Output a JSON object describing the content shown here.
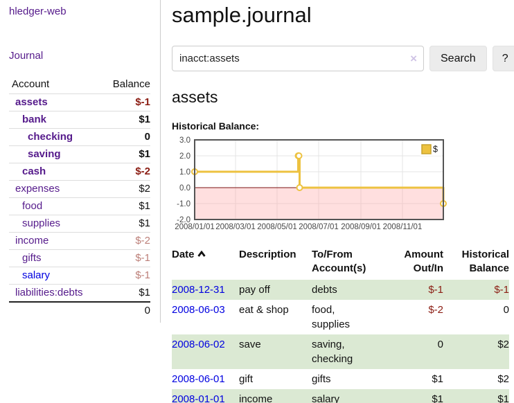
{
  "sidebar": {
    "app_title": "hledger-web",
    "nav": {
      "journal_label": "Journal"
    },
    "accounts_table": {
      "headers": {
        "account": "Account",
        "balance": "Balance"
      },
      "rows": [
        {
          "name": "assets",
          "balance": "$-1",
          "indent": 1,
          "bold": true,
          "balance_style": "neg-strong"
        },
        {
          "name": "bank",
          "balance": "$1",
          "indent": 2,
          "bold": true,
          "balance_style": "pos"
        },
        {
          "name": "checking",
          "balance": "0",
          "indent": 3,
          "bold": true,
          "balance_style": "pos"
        },
        {
          "name": "saving",
          "balance": "$1",
          "indent": 3,
          "bold": true,
          "balance_style": "pos"
        },
        {
          "name": "cash",
          "balance": "$-2",
          "indent": 2,
          "bold": true,
          "balance_style": "neg-strong"
        },
        {
          "name": "expenses",
          "balance": "$2",
          "indent": 1,
          "bold": false,
          "balance_style": "pos"
        },
        {
          "name": "food",
          "balance": "$1",
          "indent": 2,
          "bold": false,
          "balance_style": "pos"
        },
        {
          "name": "supplies",
          "balance": "$1",
          "indent": 2,
          "bold": false,
          "balance_style": "pos"
        },
        {
          "name": "income",
          "balance": "$-2",
          "indent": 1,
          "bold": false,
          "balance_style": "neg-soft"
        },
        {
          "name": "gifts",
          "balance": "$-1",
          "indent": 2,
          "bold": false,
          "balance_style": "neg-soft"
        },
        {
          "name": "salary",
          "balance": "$-1",
          "indent": 2,
          "bold": false,
          "balance_style": "neg-soft",
          "link_color": "blue"
        },
        {
          "name": "liabilities:debts",
          "balance": "$1",
          "indent": 1,
          "bold": false,
          "balance_style": "pos"
        }
      ],
      "total": "0"
    }
  },
  "header": {
    "title": "sample.journal"
  },
  "search": {
    "value": "inacct:assets",
    "clear_icon": "×",
    "button_label": "Search",
    "help_label": "?"
  },
  "account_page": {
    "title": "assets"
  },
  "chart_data": {
    "type": "line",
    "title": "Historical Balance:",
    "step": true,
    "series": [
      {
        "name": "$",
        "color": "#edc240",
        "points": [
          {
            "date": "2008-01-01",
            "value": 1
          },
          {
            "date": "2008-06-01",
            "value": 2
          },
          {
            "date": "2008-06-02",
            "value": 2
          },
          {
            "date": "2008-06-03",
            "value": 0
          },
          {
            "date": "2008-12-31",
            "value": -1
          }
        ]
      }
    ],
    "x_ticks": [
      "2008/01/01",
      "2008/03/01",
      "2008/05/01",
      "2008/07/01",
      "2008/09/01",
      "2008/11/01"
    ],
    "y_ticks": [
      3.0,
      2.0,
      1.0,
      0.0,
      -1.0,
      -2.0
    ],
    "xlim": [
      "2008-01-01",
      "2008-12-31"
    ],
    "ylim": [
      -2,
      3
    ],
    "grid": true,
    "colors": {
      "gridline": "#e4e4e4",
      "border": "#545454",
      "zero_line": "#7a1010",
      "negative_region_fill": "rgba(255,170,170,0.38)",
      "marker_fill": "#ffffff"
    },
    "legend": {
      "label": "$",
      "position": "top-right"
    }
  },
  "register_table": {
    "headers": {
      "date": "Date",
      "description": "Description",
      "accounts": "To/From Account(s)",
      "amount": "Amount Out/In",
      "balance": "Historical Balance"
    },
    "rows": [
      {
        "date": "2008-12-31",
        "description": "pay off",
        "accounts": "debts",
        "amount": "$-1",
        "amount_neg": true,
        "balance": "$-1",
        "balance_neg": true
      },
      {
        "date": "2008-06-03",
        "description": "eat & shop",
        "accounts": "food, supplies",
        "amount": "$-2",
        "amount_neg": true,
        "balance": "0",
        "balance_neg": false
      },
      {
        "date": "2008-06-02",
        "description": "save",
        "accounts": "saving, checking",
        "amount": "0",
        "amount_neg": false,
        "balance": "$2",
        "balance_neg": false
      },
      {
        "date": "2008-06-01",
        "description": "gift",
        "accounts": "gifts",
        "amount": "$1",
        "amount_neg": false,
        "balance": "$2",
        "balance_neg": false
      },
      {
        "date": "2008-01-01",
        "description": "income",
        "accounts": "salary",
        "amount": "$1",
        "amount_neg": false,
        "balance": "$1",
        "balance_neg": false
      }
    ]
  }
}
